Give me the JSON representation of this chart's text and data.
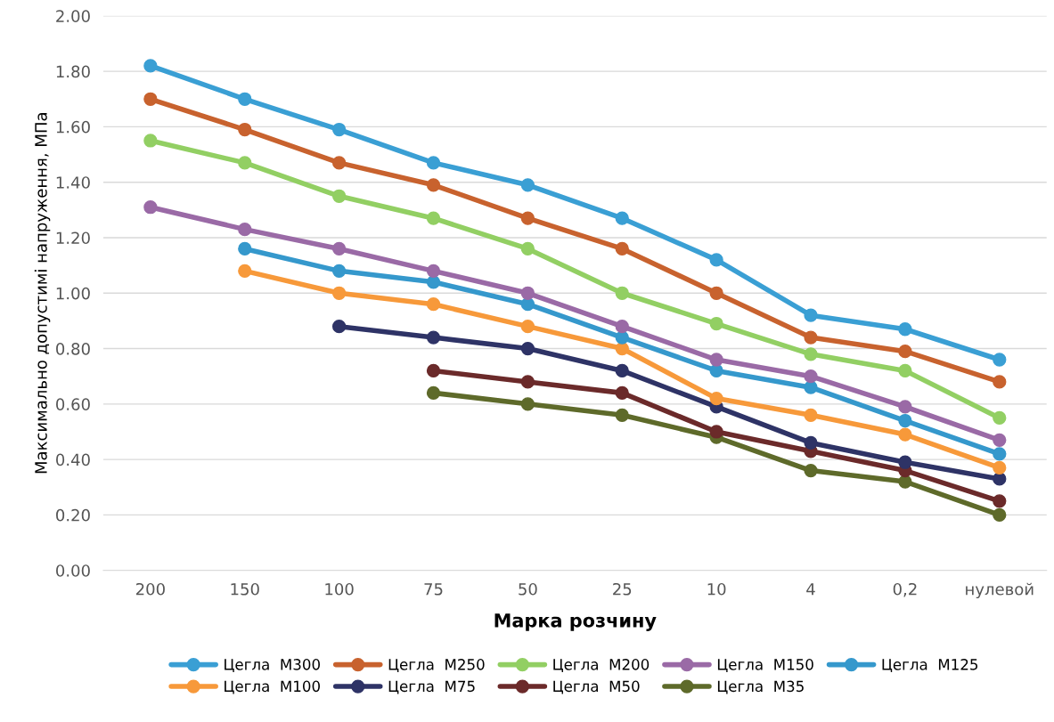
{
  "chart_data": {
    "type": "line",
    "xlabel": "Марка розчину",
    "ylabel": "Максимально допустимі напруження, МПа",
    "categories": [
      "200",
      "150",
      "100",
      "75",
      "50",
      "25",
      "10",
      "4",
      "0,2",
      "нулевой"
    ],
    "ylim": [
      0,
      2
    ],
    "yticks": [
      {
        "value": 0,
        "label": "0.00"
      },
      {
        "value": 0.2,
        "label": "0.20"
      },
      {
        "value": 0.4,
        "label": "0.40"
      },
      {
        "value": 0.6,
        "label": "0.60"
      },
      {
        "value": 0.8,
        "label": "0.80"
      },
      {
        "value": 1.0,
        "label": "1.00"
      },
      {
        "value": 1.2,
        "label": "1.20"
      },
      {
        "value": 1.4,
        "label": "1.40"
      },
      {
        "value": 1.6,
        "label": "1.60"
      },
      {
        "value": 1.8,
        "label": "1.80"
      },
      {
        "value": 2.0,
        "label": "2.00"
      }
    ],
    "grid": "y",
    "legend": "bottom",
    "marker": "circle",
    "line_style": "solid",
    "series": [
      {
        "name": "Цегла  М300",
        "color": "#3a9fd4",
        "values": [
          1.82,
          1.7,
          1.59,
          1.47,
          1.39,
          1.27,
          1.12,
          0.92,
          0.87,
          0.76
        ]
      },
      {
        "name": "Цегла  М250",
        "color": "#c8622e",
        "values": [
          1.7,
          1.59,
          1.47,
          1.39,
          1.27,
          1.16,
          1.0,
          0.84,
          0.79,
          0.68
        ]
      },
      {
        "name": "Цегла  М200",
        "color": "#92cf63",
        "values": [
          1.55,
          1.47,
          1.35,
          1.27,
          1.16,
          1.0,
          0.89,
          0.78,
          0.72,
          0.55
        ]
      },
      {
        "name": "Цегла  М150",
        "color": "#9a6aa6",
        "values": [
          1.31,
          1.23,
          1.16,
          1.08,
          1.0,
          0.88,
          0.76,
          0.7,
          0.59,
          0.47
        ]
      },
      {
        "name": "Цегла  М125",
        "color": "#3598cc",
        "values": [
          null,
          1.16,
          1.08,
          1.04,
          0.96,
          0.84,
          0.72,
          0.66,
          0.54,
          0.42
        ]
      },
      {
        "name": "Цегла  М100",
        "color": "#f7993a",
        "values": [
          null,
          1.08,
          1.0,
          0.96,
          0.88,
          0.8,
          0.62,
          0.56,
          0.49,
          0.37
        ]
      },
      {
        "name": "Цегла  М75",
        "color": "#2e3366",
        "values": [
          null,
          null,
          0.88,
          0.84,
          0.8,
          0.72,
          0.59,
          0.46,
          0.39,
          0.33
        ]
      },
      {
        "name": "Цегла  М50",
        "color": "#6b2a2a",
        "values": [
          null,
          null,
          null,
          0.72,
          0.68,
          0.64,
          0.5,
          0.43,
          0.36,
          0.25
        ]
      },
      {
        "name": "Цегла  М35",
        "color": "#5e6a2a",
        "values": [
          null,
          null,
          null,
          0.64,
          0.6,
          0.56,
          0.48,
          0.36,
          0.32,
          0.2
        ]
      }
    ]
  }
}
